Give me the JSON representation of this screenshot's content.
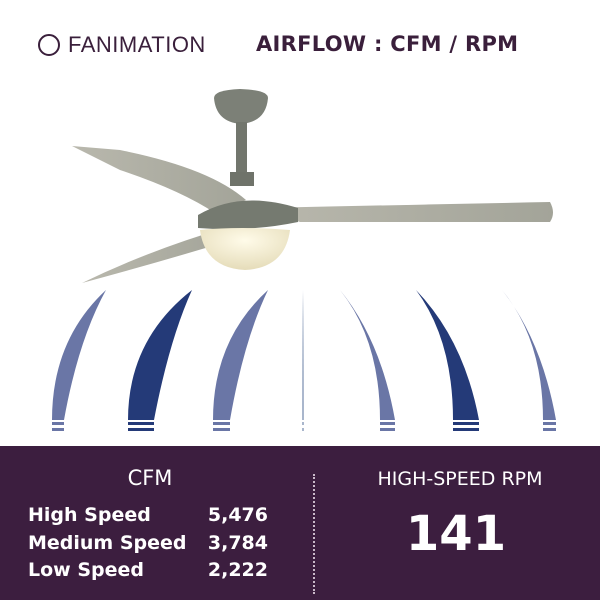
{
  "brand": {
    "name": "FANIMATION"
  },
  "header": {
    "title": "AIRFLOW : CFM / RPM"
  },
  "colors": {
    "panel": "#3c1e3f",
    "airflow_dark": "#243a78",
    "airflow_light": "#6a76a6",
    "text": "#3a1f3b"
  },
  "cfm": {
    "title": "CFM",
    "rows": [
      {
        "label": "High Speed",
        "value": "5,476"
      },
      {
        "label": "Medium Speed",
        "value": "3,784"
      },
      {
        "label": "Low Speed",
        "value": "2,222"
      }
    ]
  },
  "rpm": {
    "title": "HIGH-SPEED RPM",
    "value": "141"
  }
}
